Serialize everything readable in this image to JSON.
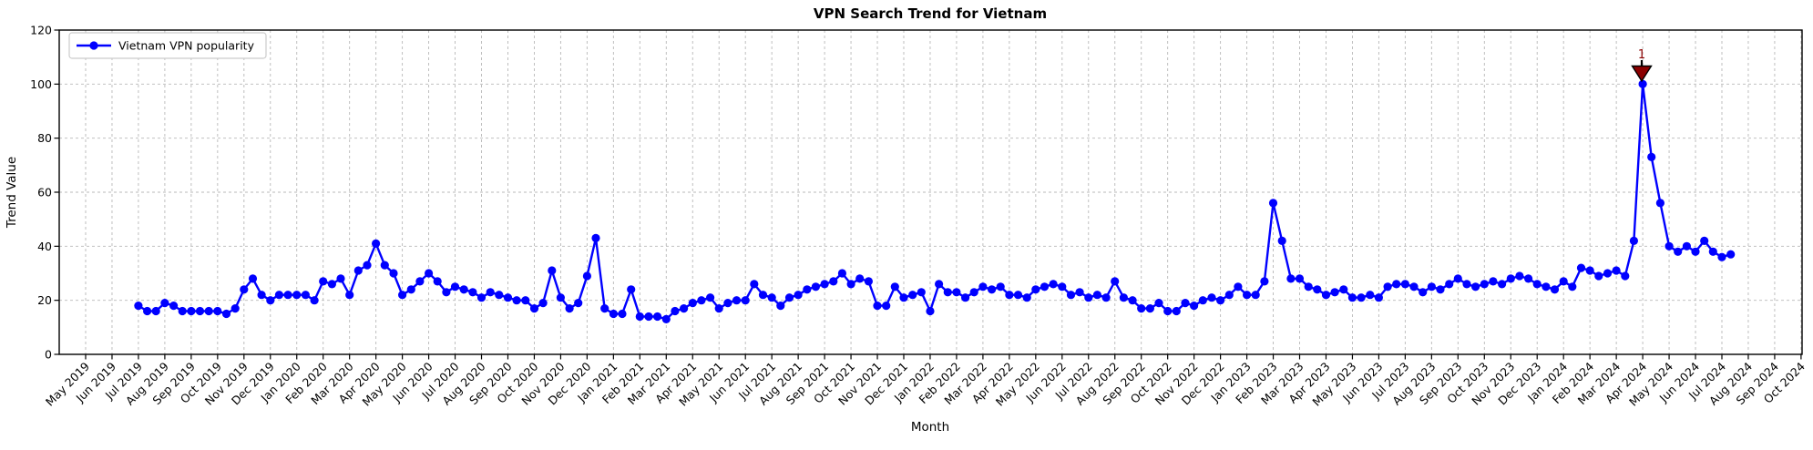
{
  "title": "VPN Search Trend for Vietnam",
  "axes": {
    "xlabel": "Month",
    "ylabel": "Trend Value"
  },
  "legend": {
    "label": "Vietnam VPN popularity"
  },
  "colors": {
    "line": "#0000ff",
    "grid": "#b8b8b8",
    "spine": "#000000",
    "annotation": "#8b0000",
    "background": "#ffffff"
  },
  "chart_data": {
    "type": "line",
    "title": "VPN Search Trend for Vietnam",
    "xlabel": "Month",
    "ylabel": "Trend Value",
    "ylim": [
      0,
      120
    ],
    "yticks": [
      0,
      20,
      40,
      60,
      80,
      100,
      120
    ],
    "grid": true,
    "grid_style": "dashed",
    "legend_position": "upper left",
    "categories": [
      "May 2019",
      "Jun 2019",
      "Jul 2019",
      "Aug 2019",
      "Sep 2019",
      "Oct 2019",
      "Nov 2019",
      "Dec 2019",
      "Jan 2020",
      "Feb 2020",
      "Mar 2020",
      "Apr 2020",
      "May 2020",
      "Jun 2020",
      "Jul 2020",
      "Aug 2020",
      "Sep 2020",
      "Oct 2020",
      "Nov 2020",
      "Dec 2020",
      "Jan 2021",
      "Feb 2021",
      "Mar 2021",
      "Apr 2021",
      "May 2021",
      "Jun 2021",
      "Jul 2021",
      "Aug 2021",
      "Sep 2021",
      "Oct 2021",
      "Nov 2021",
      "Dec 2021",
      "Jan 2022",
      "Feb 2022",
      "Mar 2022",
      "Apr 2022",
      "May 2022",
      "Jun 2022",
      "Jul 2022",
      "Aug 2022",
      "Sep 2022",
      "Oct 2022",
      "Nov 2022",
      "Dec 2022",
      "Jan 2023",
      "Feb 2023",
      "Mar 2023",
      "Apr 2023",
      "May 2023",
      "Jun 2023",
      "Jul 2023",
      "Aug 2023",
      "Sep 2023",
      "Oct 2023",
      "Nov 2023",
      "Dec 2023",
      "Jan 2024",
      "Feb 2024",
      "Mar 2024",
      "Apr 2024",
      "May 2024",
      "Jun 2024",
      "Jul 2024",
      "Aug 2024",
      "Sep 2024",
      "Oct 2024"
    ],
    "series": [
      {
        "name": "Vietnam VPN popularity",
        "color": "#0000ff",
        "marker": "circle",
        "start_month": "Jul 2019",
        "start_month_index": 2,
        "samples_per_month": 3,
        "values": [
          18,
          16,
          16,
          19,
          18,
          16,
          16,
          16,
          16,
          16,
          15,
          17,
          24,
          28,
          22,
          20,
          22,
          22,
          22,
          22,
          20,
          27,
          26,
          28,
          22,
          31,
          33,
          41,
          33,
          30,
          22,
          24,
          27,
          30,
          27,
          23,
          25,
          24,
          23,
          21,
          23,
          22,
          21,
          20,
          20,
          17,
          19,
          31,
          21,
          17,
          19,
          29,
          43,
          17,
          15,
          15,
          24,
          14,
          14,
          14,
          13,
          16,
          17,
          19,
          20,
          21,
          17,
          19,
          20,
          20,
          26,
          22,
          21,
          18,
          21,
          22,
          24,
          25,
          26,
          27,
          30,
          26,
          28,
          27,
          18,
          18,
          25,
          21,
          22,
          23,
          16,
          26,
          23,
          23,
          21,
          23,
          25,
          24,
          25,
          22,
          22,
          21,
          24,
          25,
          26,
          25,
          22,
          23,
          21,
          22,
          21,
          27,
          21,
          20,
          17,
          17,
          19,
          16,
          16,
          19,
          18,
          20,
          21,
          20,
          22,
          25,
          22,
          22,
          27,
          56,
          42,
          28,
          28,
          25,
          24,
          22,
          23,
          24,
          21,
          21,
          22,
          21,
          25,
          26,
          26,
          25,
          23,
          25,
          24,
          26,
          28,
          26,
          25,
          26,
          27,
          26,
          28,
          29,
          28,
          26,
          25,
          24,
          27,
          25,
          32,
          31,
          29,
          30,
          31,
          29,
          42,
          100,
          73,
          56,
          40,
          38,
          40,
          38,
          42,
          38,
          36,
          37
        ]
      }
    ],
    "annotations": [
      {
        "label": "1",
        "month": "Apr 2024",
        "value": 100,
        "marker": "triangle-down",
        "color": "#8b0000",
        "text_color": "#8b0000"
      }
    ]
  }
}
